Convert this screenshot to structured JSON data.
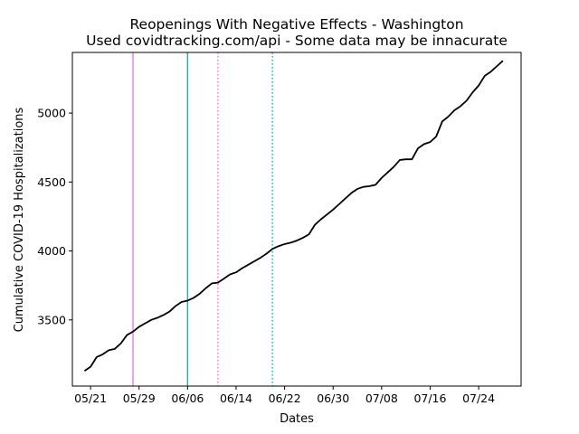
{
  "chart_data": {
    "type": "line",
    "title": "Reopenings With Negative Effects - Washington",
    "subtitle": "Used covidtracking.com/api - Some data may be innacurate",
    "xlabel": "Dates",
    "ylabel": "Cumulative COVID-19 Hospitalizations",
    "x_ticks": [
      "05/21",
      "05/29",
      "06/06",
      "06/14",
      "06/22",
      "06/30",
      "07/08",
      "07/16",
      "07/24"
    ],
    "y_ticks": [
      3500,
      4000,
      4500,
      5000
    ],
    "xlim": [
      "2020-05-18",
      "2020-07-31"
    ],
    "ylim": [
      3020,
      5440
    ],
    "grid": false,
    "series": [
      {
        "color": "#000000",
        "start_date": "2020-05-20",
        "values": [
          3130,
          3160,
          3230,
          3250,
          3280,
          3290,
          3330,
          3390,
          3415,
          3450,
          3475,
          3500,
          3515,
          3535,
          3560,
          3600,
          3630,
          3640,
          3660,
          3690,
          3730,
          3765,
          3770,
          3800,
          3830,
          3845,
          3875,
          3900,
          3925,
          3950,
          3980,
          4015,
          4035,
          4050,
          4060,
          4075,
          4095,
          4120,
          4190,
          4230,
          4265,
          4300,
          4340,
          4380,
          4420,
          4450,
          4465,
          4470,
          4480,
          4530,
          4570,
          4610,
          4660,
          4665,
          4665,
          4745,
          4775,
          4790,
          4830,
          4940,
          4975,
          5020,
          5050,
          5090,
          5150,
          5200,
          5270,
          5300,
          5340,
          5380
        ]
      }
    ],
    "vlines": [
      {
        "date": "2020-05-28",
        "color": "#ee82ee",
        "style": "solid"
      },
      {
        "date": "2020-06-06",
        "color": "#00bfd0",
        "style": "solid"
      },
      {
        "date": "2020-06-11",
        "color": "#ee82ee",
        "style": "dotted"
      },
      {
        "date": "2020-06-20",
        "color": "#00bfd0",
        "style": "dotted"
      }
    ]
  }
}
